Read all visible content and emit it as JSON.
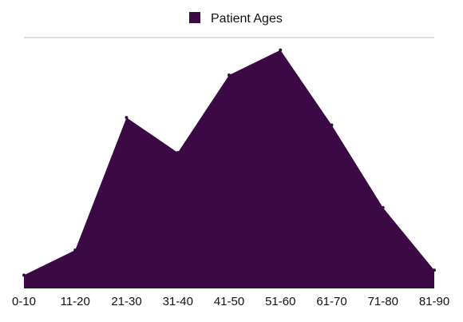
{
  "chart_data": {
    "type": "area",
    "categories": [
      "0-10",
      "11-20",
      "21-30",
      "31-40",
      "41-50",
      "51-60",
      "61-70",
      "71-80",
      "81-90"
    ],
    "series": [
      {
        "name": "Patient Ages",
        "values": [
          5,
          15,
          68,
          54,
          85,
          95,
          65,
          32,
          7
        ],
        "color": "#3b0a45"
      }
    ],
    "ylim": [
      0,
      100
    ],
    "grid": false,
    "legend": "top-center",
    "title": "",
    "xlabel": "",
    "ylabel": ""
  }
}
